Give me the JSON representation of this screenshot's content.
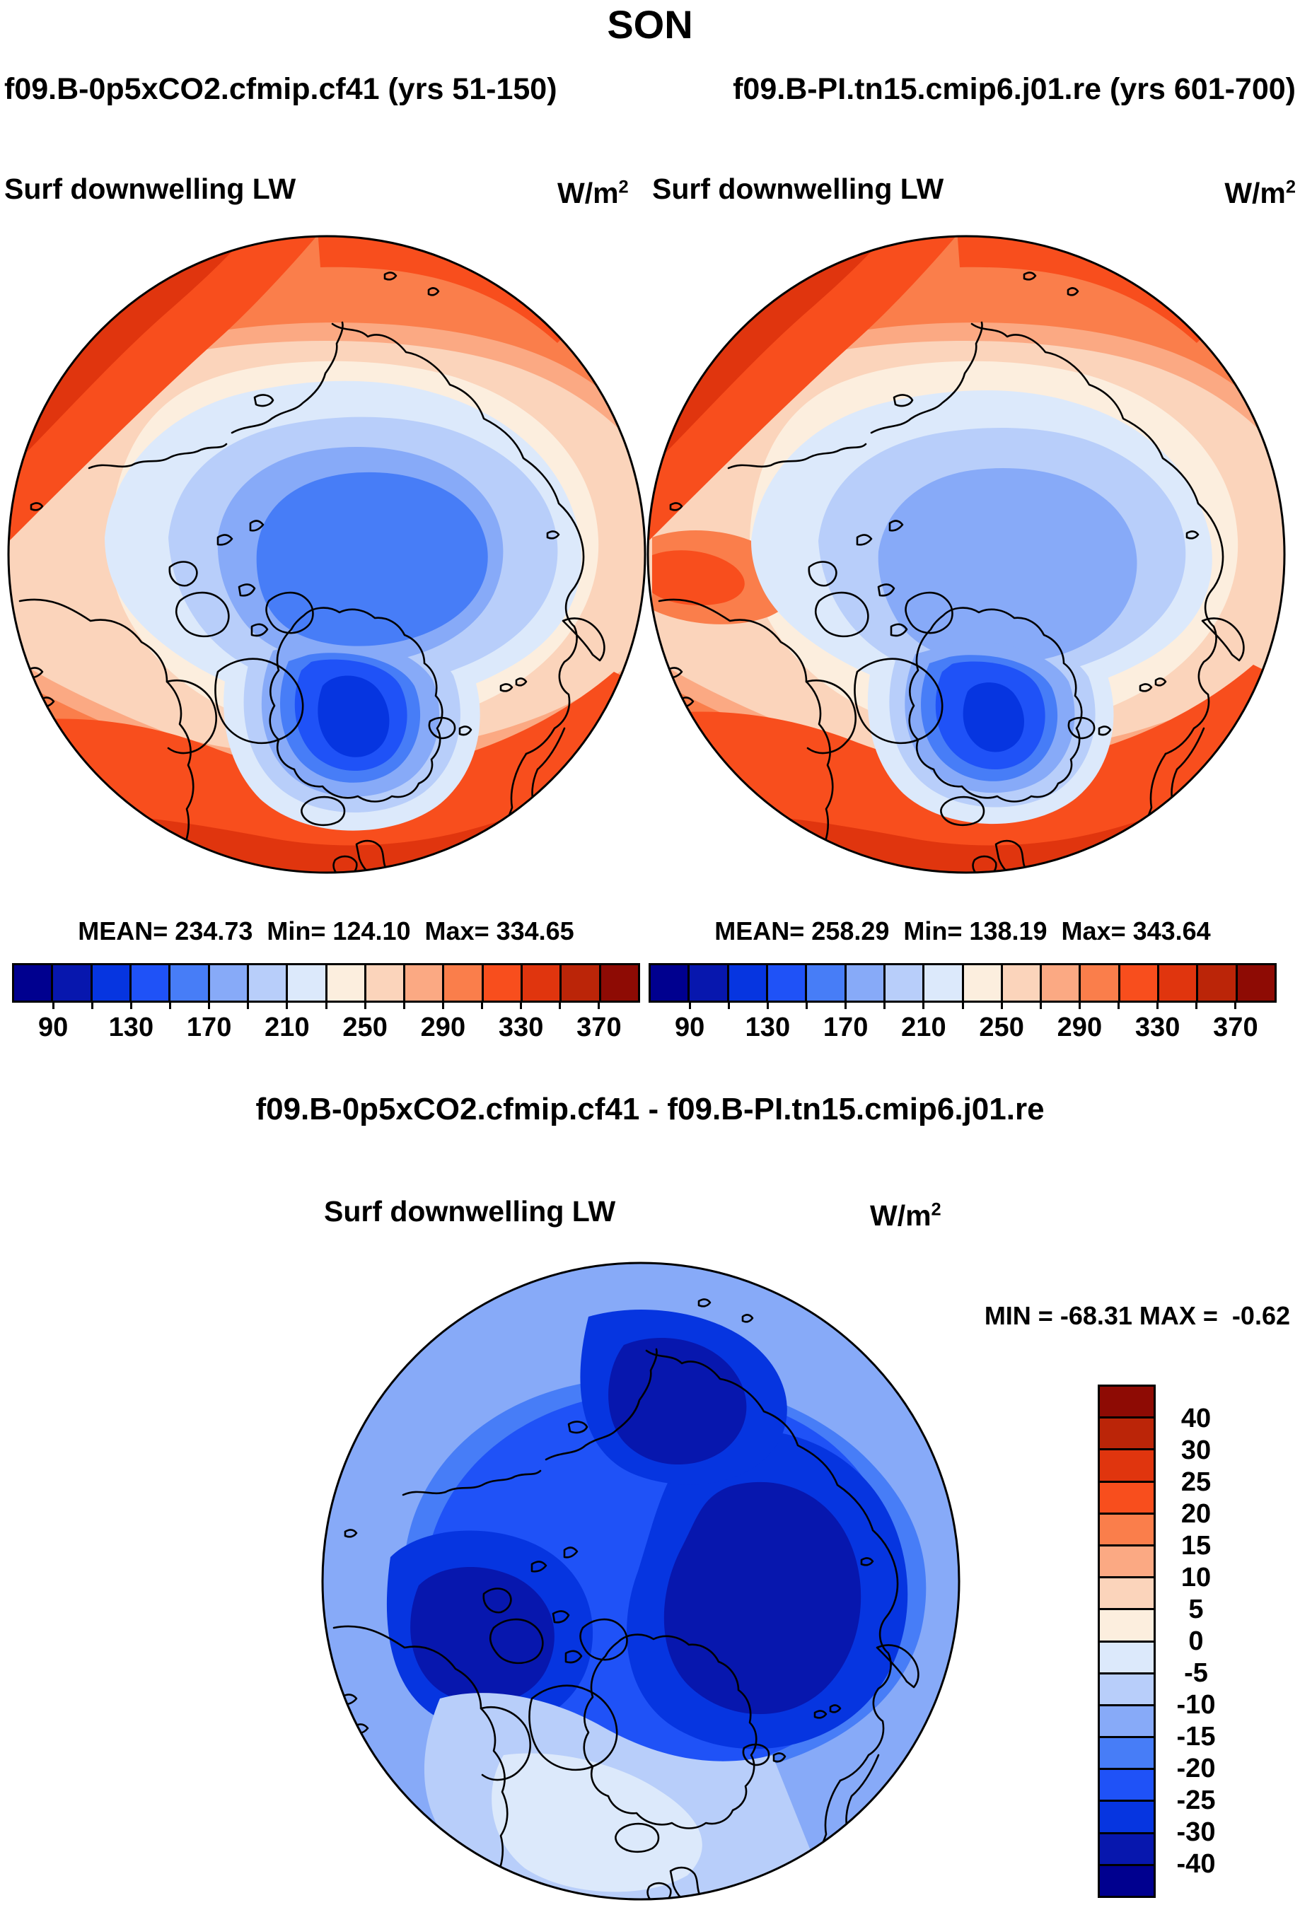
{
  "page_title": "SON",
  "subtitle_left": "f09.B-0p5xCO2.cfmip.cf41 (yrs 51-150)",
  "subtitle_right": "f09.B-PI.tn15.cmip6.j01.re (yrs 601-700)",
  "diff_title": "f09.B-0p5xCO2.cfmip.cf41 - f09.B-PI.tn15.cmip6.j01.re",
  "units": {
    "base": "W/m",
    "sup": "2"
  },
  "panels": {
    "left": {
      "header": "Surf downwelling LW",
      "stats": "MEAN= 234.73  Min= 124.10  Max= 334.65"
    },
    "right": {
      "header": "Surf downwelling LW",
      "stats": "MEAN= 258.29  Min= 138.19  Max= 343.64"
    },
    "diff": {
      "header": "Surf downwelling LW",
      "minmax": "MIN = -68.31 MAX =  -0.62"
    }
  },
  "palette": {
    "colors16": [
      "#00008F",
      "#0717AE",
      "#0635E0",
      "#1F52F7",
      "#477DF7",
      "#87AAF8",
      "#B8CEFA",
      "#DCE9FB",
      "#FCEEDE",
      "#FBD4BB",
      "#FBA983",
      "#FA7E4B",
      "#F84E1D",
      "#E0350E",
      "#BB2508",
      "#8E0B04"
    ],
    "coastline": "#000000",
    "background": "#FFFFFF"
  },
  "colorbar_h": {
    "tick_labels": [
      "90",
      "130",
      "170",
      "210",
      "250",
      "290",
      "330",
      "370"
    ]
  },
  "colorbar_v": {
    "tick_labels": [
      "40",
      "30",
      "25",
      "20",
      "15",
      "10",
      "5",
      "0",
      "-5",
      "-10",
      "-15",
      "-20",
      "-25",
      "-30",
      "-40"
    ]
  },
  "chart_data": [
    {
      "type": "heatmap",
      "projection": "north-polar-stereographic",
      "title": "Surf downwelling LW",
      "run": "f09.B-0p5xCO2.cfmip.cf41",
      "years": "yrs 51-150",
      "units": "W/m2",
      "stats": {
        "mean": 234.73,
        "min": 124.1,
        "max": 334.65
      },
      "colorbar": {
        "orientation": "horizontal",
        "bin_edges": [
          70,
          90,
          110,
          130,
          150,
          170,
          190,
          210,
          230,
          250,
          270,
          290,
          310,
          330,
          350,
          370,
          390
        ],
        "tick_labels": [
          90,
          130,
          170,
          210,
          250,
          290,
          330,
          370
        ],
        "colors": [
          "#00008F",
          "#0717AE",
          "#0635E0",
          "#1F52F7",
          "#477DF7",
          "#87AAF8",
          "#B8CEFA",
          "#DCE9FB",
          "#FCEEDE",
          "#FBD4BB",
          "#FBA983",
          "#FA7E4B",
          "#F84E1D",
          "#E0350E",
          "#BB2508",
          "#8E0B04"
        ]
      }
    },
    {
      "type": "heatmap",
      "projection": "north-polar-stereographic",
      "title": "Surf downwelling LW",
      "run": "f09.B-PI.tn15.cmip6.j01.re",
      "years": "yrs 601-700",
      "units": "W/m2",
      "stats": {
        "mean": 258.29,
        "min": 138.19,
        "max": 343.64
      },
      "colorbar": {
        "orientation": "horizontal",
        "bin_edges": [
          70,
          90,
          110,
          130,
          150,
          170,
          190,
          210,
          230,
          250,
          270,
          290,
          310,
          330,
          350,
          370,
          390
        ],
        "tick_labels": [
          90,
          130,
          170,
          210,
          250,
          290,
          330,
          370
        ],
        "colors": [
          "#00008F",
          "#0717AE",
          "#0635E0",
          "#1F52F7",
          "#477DF7",
          "#87AAF8",
          "#B8CEFA",
          "#DCE9FB",
          "#FCEEDE",
          "#FBD4BB",
          "#FBA983",
          "#FA7E4B",
          "#F84E1D",
          "#E0350E",
          "#BB2508",
          "#8E0B04"
        ]
      }
    },
    {
      "type": "heatmap",
      "projection": "north-polar-stereographic",
      "title": "Surf downwelling LW difference",
      "expression": "f09.B-0p5xCO2.cfmip.cf41 - f09.B-PI.tn15.cmip6.j01.re",
      "units": "W/m2",
      "stats": {
        "min": -68.31,
        "max": -0.62
      },
      "colorbar": {
        "orientation": "vertical",
        "boundaries": [
          40,
          30,
          25,
          20,
          15,
          10,
          5,
          0,
          -5,
          -10,
          -15,
          -20,
          -25,
          -30,
          -40
        ],
        "colors_top_to_bottom": [
          "#8E0B04",
          "#BB2508",
          "#E0350E",
          "#F84E1D",
          "#FA7E4B",
          "#FBA983",
          "#FBD4BB",
          "#FCEEDE",
          "#DCE9FB",
          "#B8CEFA",
          "#87AAF8",
          "#477DF7",
          "#1F52F7",
          "#0635E0",
          "#0717AE",
          "#00008F"
        ]
      }
    }
  ]
}
